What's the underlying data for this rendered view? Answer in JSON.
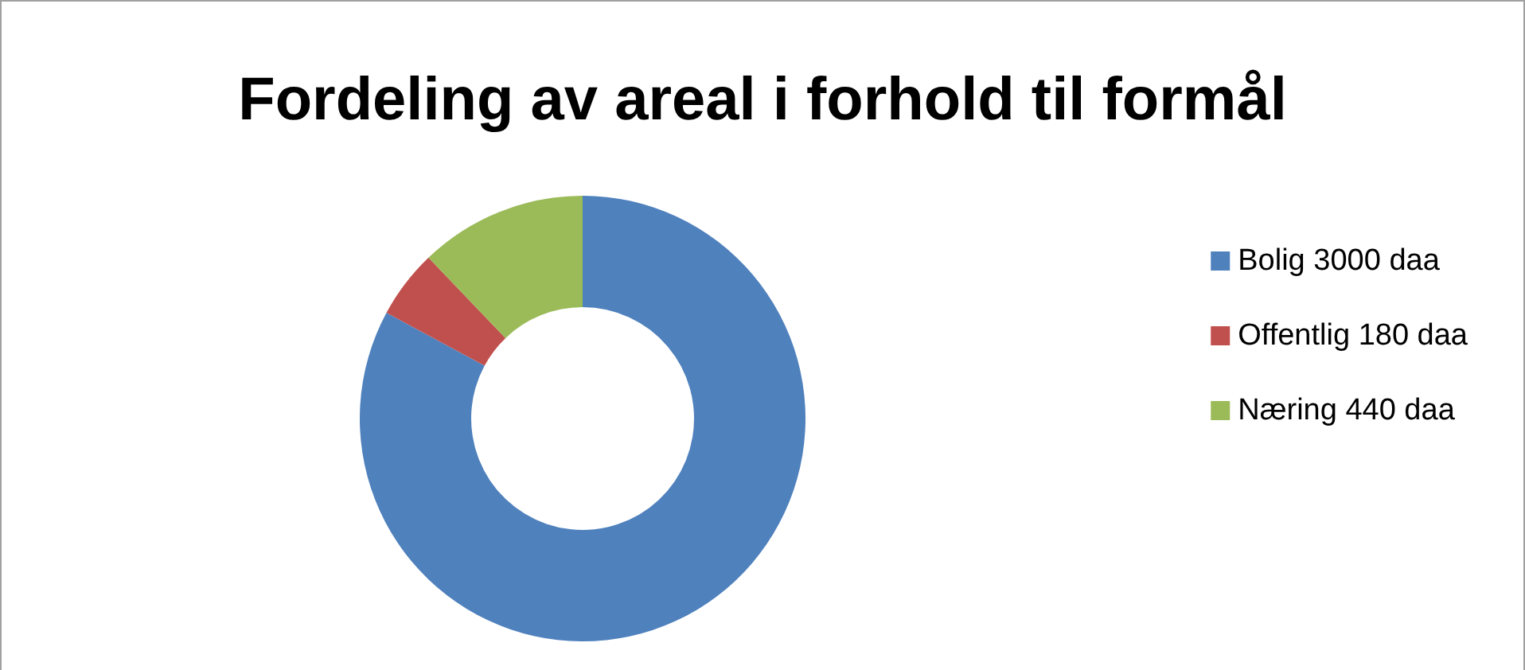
{
  "chart_data": {
    "type": "donut",
    "title": "Fordeling av areal i forhold til formål",
    "categories": [
      "Bolig 3000 daa",
      "Offentlig 180 daa",
      "Næring 440 daa"
    ],
    "values": [
      3000,
      180,
      440
    ],
    "colors": [
      "#4f81bd",
      "#c0504d",
      "#9bbb59"
    ],
    "legend": "right"
  }
}
